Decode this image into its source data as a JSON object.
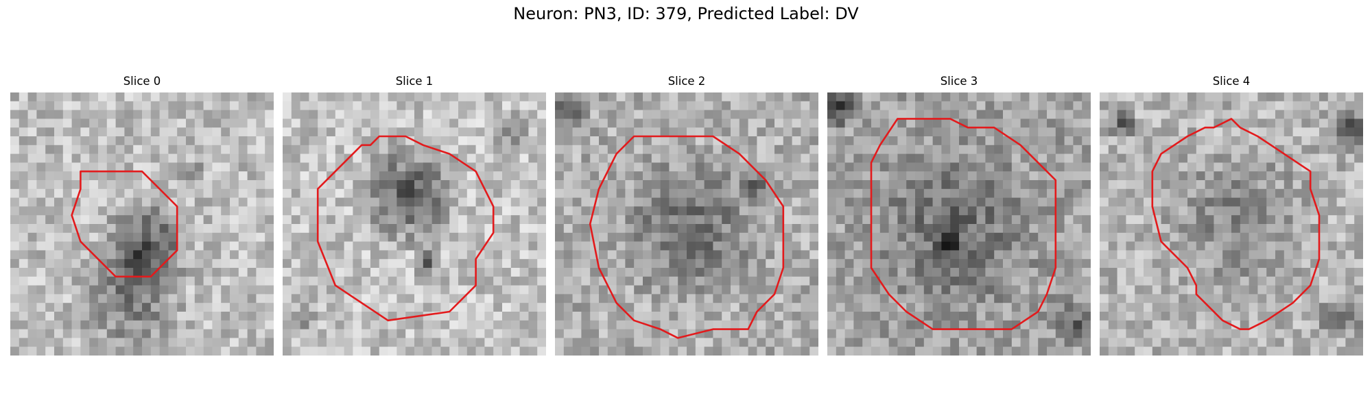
{
  "figure": {
    "title": "Neuron: PN3, ID: 379, Predicted Label: DV"
  },
  "panels": [
    {
      "title": "Slice 0",
      "contour_color": "#e31a1c"
    },
    {
      "title": "Slice 1",
      "contour_color": "#e31a1c"
    },
    {
      "title": "Slice 2",
      "contour_color": "#e31a1c"
    },
    {
      "title": "Slice 3",
      "contour_color": "#e31a1c"
    },
    {
      "title": "Slice 4",
      "contour_color": "#e31a1c"
    }
  ]
}
